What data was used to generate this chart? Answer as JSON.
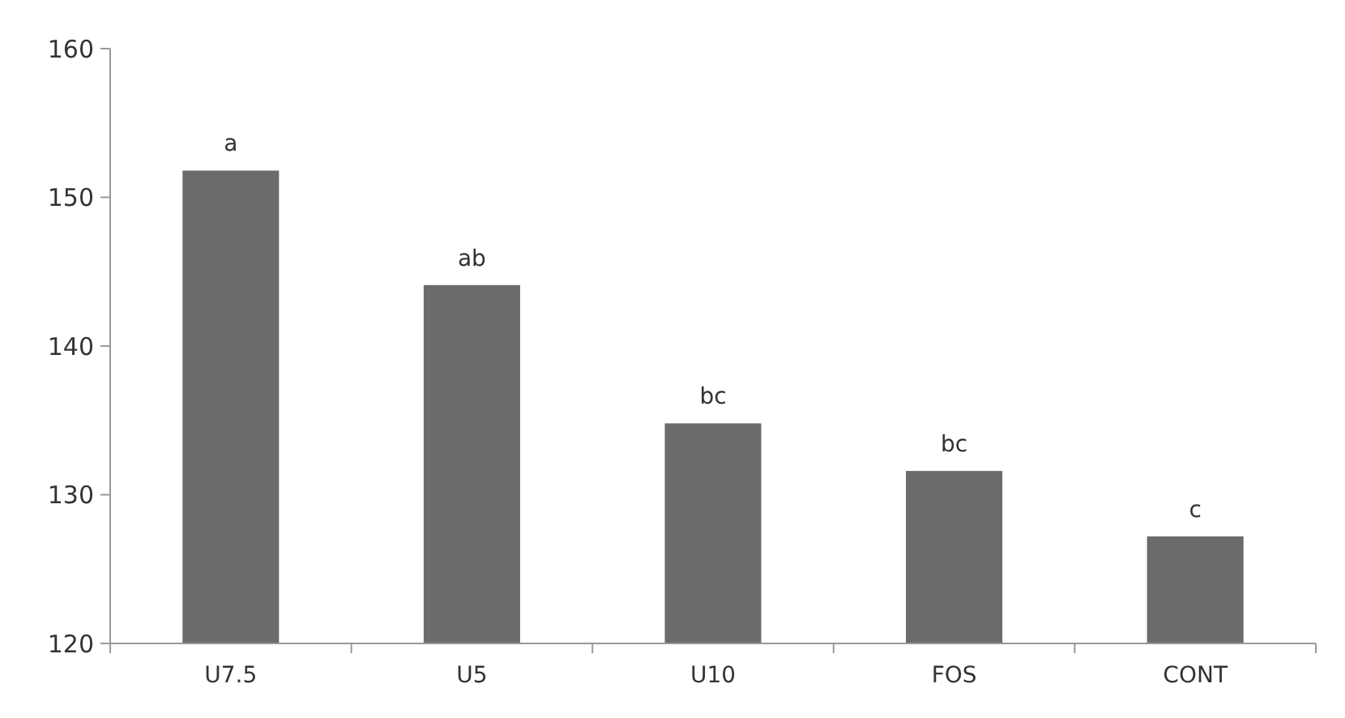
{
  "chart_data": {
    "type": "bar",
    "categories": [
      "U7.5",
      "U5",
      "U10",
      "FOS",
      "CONT"
    ],
    "values": [
      151.8,
      144.1,
      134.8,
      131.6,
      127.2
    ],
    "color": "#6b6b6b",
    "ylim": [
      120,
      160
    ],
    "yticks": [
      120,
      130,
      140,
      150,
      160
    ],
    "grid": false,
    "annotations": [
      {
        "text": "a",
        "x": "U7.5",
        "y": 151.8
      },
      {
        "text": "ab",
        "x": "U5",
        "y": 144.1
      },
      {
        "text": "bc",
        "x": "U10",
        "y": 134.8
      },
      {
        "text": "bc",
        "x": "FOS",
        "y": 131.6
      },
      {
        "text": "c",
        "x": "CONT",
        "y": 127.2
      }
    ]
  }
}
